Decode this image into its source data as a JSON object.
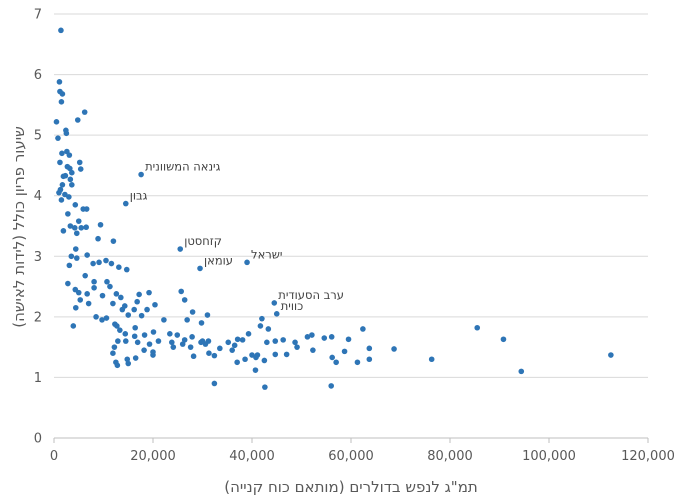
{
  "chart_data": {
    "type": "scatter",
    "title": "",
    "xlabel": "תמ\"ג לנפש בדולרים (מותאם כוח קנייה)",
    "ylabel": "שיעור פריון כולל (לידות לאישה)",
    "xlim": [
      0,
      120000
    ],
    "ylim": [
      0,
      7
    ],
    "x_ticks": [
      0,
      20000,
      40000,
      60000,
      80000,
      100000,
      120000
    ],
    "x_tick_labels": [
      "0",
      "20,000",
      "40,000",
      "60,000",
      "80,000",
      "100,000",
      "120,000"
    ],
    "y_ticks": [
      0,
      1,
      2,
      3,
      4,
      5,
      6,
      7
    ],
    "y_tick_labels": [
      "0",
      "1",
      "2",
      "3",
      "4",
      "5",
      "6",
      "7"
    ],
    "grid": "horizontal",
    "color": "#2e75b6",
    "annotations": [
      {
        "text": "גינאה המשוונית",
        "x": 17600,
        "y": 4.35
      },
      {
        "text": "גבון",
        "x": 14500,
        "y": 3.87
      },
      {
        "text": "קזחסטן",
        "x": 25500,
        "y": 3.12
      },
      {
        "text": "עומאן",
        "x": 29500,
        "y": 2.8
      },
      {
        "text": "ישראל",
        "x": 39000,
        "y": 2.9
      },
      {
        "text": "ערב הסעודית",
        "x": 44500,
        "y": 2.23
      },
      {
        "text": "כווית",
        "x": 45000,
        "y": 2.05
      }
    ],
    "points": [
      [
        1400,
        6.73
      ],
      [
        1100,
        5.88
      ],
      [
        1200,
        5.72
      ],
      [
        1700,
        5.68
      ],
      [
        1500,
        5.55
      ],
      [
        6200,
        5.38
      ],
      [
        4800,
        5.25
      ],
      [
        500,
        5.22
      ],
      [
        2400,
        5.08
      ],
      [
        2500,
        5.03
      ],
      [
        800,
        4.95
      ],
      [
        1600,
        4.7
      ],
      [
        2600,
        4.73
      ],
      [
        3100,
        4.67
      ],
      [
        1200,
        4.55
      ],
      [
        5200,
        4.55
      ],
      [
        2700,
        4.48
      ],
      [
        3200,
        4.45
      ],
      [
        5400,
        4.44
      ],
      [
        3600,
        4.38
      ],
      [
        1900,
        4.32
      ],
      [
        2300,
        4.33
      ],
      [
        3300,
        4.27
      ],
      [
        1700,
        4.18
      ],
      [
        3600,
        4.18
      ],
      [
        1000,
        4.05
      ],
      [
        1300,
        4.1
      ],
      [
        2200,
        4.02
      ],
      [
        3000,
        3.98
      ],
      [
        1500,
        3.93
      ],
      [
        4300,
        3.85
      ],
      [
        5900,
        3.78
      ],
      [
        6600,
        3.78
      ],
      [
        2800,
        3.7
      ],
      [
        5000,
        3.58
      ],
      [
        3300,
        3.5
      ],
      [
        4200,
        3.47
      ],
      [
        5500,
        3.47
      ],
      [
        6500,
        3.48
      ],
      [
        1900,
        3.42
      ],
      [
        4600,
        3.38
      ],
      [
        9400,
        3.52
      ],
      [
        12000,
        3.25
      ],
      [
        8900,
        3.29
      ],
      [
        4400,
        3.12
      ],
      [
        6700,
        3.02
      ],
      [
        3500,
        3.0
      ],
      [
        4600,
        2.97
      ],
      [
        9100,
        2.9
      ],
      [
        10500,
        2.93
      ],
      [
        7900,
        2.88
      ],
      [
        11600,
        2.88
      ],
      [
        3100,
        2.85
      ],
      [
        13100,
        2.82
      ],
      [
        14700,
        2.78
      ],
      [
        6300,
        2.68
      ],
      [
        8100,
        2.58
      ],
      [
        10700,
        2.58
      ],
      [
        2800,
        2.55
      ],
      [
        11300,
        2.5
      ],
      [
        8100,
        2.48
      ],
      [
        4300,
        2.45
      ],
      [
        5000,
        2.4
      ],
      [
        6700,
        2.38
      ],
      [
        9800,
        2.35
      ],
      [
        12600,
        2.38
      ],
      [
        13500,
        2.32
      ],
      [
        17200,
        2.37
      ],
      [
        19200,
        2.4
      ],
      [
        16800,
        2.25
      ],
      [
        5300,
        2.28
      ],
      [
        7000,
        2.22
      ],
      [
        11900,
        2.22
      ],
      [
        14300,
        2.18
      ],
      [
        20400,
        2.2
      ],
      [
        26400,
        2.28
      ],
      [
        25700,
        2.42
      ],
      [
        4400,
        2.15
      ],
      [
        13800,
        2.12
      ],
      [
        16200,
        2.12
      ],
      [
        18800,
        2.12
      ],
      [
        28000,
        2.08
      ],
      [
        31000,
        2.03
      ],
      [
        8500,
        2.0
      ],
      [
        10600,
        1.98
      ],
      [
        15000,
        2.03
      ],
      [
        17700,
        2.02
      ],
      [
        22200,
        1.95
      ],
      [
        26900,
        1.95
      ],
      [
        29800,
        1.9
      ],
      [
        9700,
        1.95
      ],
      [
        12300,
        1.88
      ],
      [
        12700,
        1.85
      ],
      [
        16400,
        1.82
      ],
      [
        20100,
        1.75
      ],
      [
        23400,
        1.72
      ],
      [
        24900,
        1.7
      ],
      [
        27900,
        1.67
      ],
      [
        3900,
        1.85
      ],
      [
        13300,
        1.78
      ],
      [
        14400,
        1.72
      ],
      [
        16300,
        1.68
      ],
      [
        18300,
        1.7
      ],
      [
        21100,
        1.6
      ],
      [
        26400,
        1.62
      ],
      [
        29700,
        1.58
      ],
      [
        31200,
        1.6
      ],
      [
        35200,
        1.58
      ],
      [
        37100,
        1.63
      ],
      [
        38100,
        1.62
      ],
      [
        39300,
        1.72
      ],
      [
        41700,
        1.85
      ],
      [
        42000,
        1.97
      ],
      [
        43300,
        1.8
      ],
      [
        12900,
        1.6
      ],
      [
        14500,
        1.6
      ],
      [
        16900,
        1.58
      ],
      [
        19300,
        1.55
      ],
      [
        23800,
        1.58
      ],
      [
        26000,
        1.55
      ],
      [
        30600,
        1.55
      ],
      [
        36500,
        1.53
      ],
      [
        43000,
        1.58
      ],
      [
        44700,
        1.6
      ],
      [
        46300,
        1.62
      ],
      [
        48700,
        1.58
      ],
      [
        51200,
        1.67
      ],
      [
        52100,
        1.7
      ],
      [
        54600,
        1.65
      ],
      [
        56100,
        1.67
      ],
      [
        59500,
        1.63
      ],
      [
        62400,
        1.8
      ],
      [
        12200,
        1.5
      ],
      [
        18200,
        1.45
      ],
      [
        20000,
        1.42
      ],
      [
        24100,
        1.5
      ],
      [
        27600,
        1.5
      ],
      [
        31300,
        1.4
      ],
      [
        33500,
        1.48
      ],
      [
        36000,
        1.45
      ],
      [
        40000,
        1.37
      ],
      [
        41100,
        1.37
      ],
      [
        47000,
        1.38
      ],
      [
        49100,
        1.5
      ],
      [
        52300,
        1.45
      ],
      [
        58700,
        1.43
      ],
      [
        63700,
        1.48
      ],
      [
        68700,
        1.47
      ],
      [
        11900,
        1.4
      ],
      [
        14800,
        1.3
      ],
      [
        16500,
        1.32
      ],
      [
        20000,
        1.37
      ],
      [
        28200,
        1.35
      ],
      [
        32400,
        1.36
      ],
      [
        38600,
        1.3
      ],
      [
        40800,
        1.33
      ],
      [
        44700,
        1.38
      ],
      [
        56200,
        1.33
      ],
      [
        61300,
        1.25
      ],
      [
        63700,
        1.3
      ],
      [
        12500,
        1.25
      ],
      [
        12800,
        1.2
      ],
      [
        15000,
        1.23
      ],
      [
        37000,
        1.25
      ],
      [
        40700,
        1.12
      ],
      [
        42500,
        1.28
      ],
      [
        57000,
        1.25
      ],
      [
        32400,
        0.9
      ],
      [
        42600,
        0.84
      ],
      [
        56000,
        0.86
      ],
      [
        76300,
        1.3
      ],
      [
        85500,
        1.82
      ],
      [
        90800,
        1.63
      ],
      [
        94400,
        1.1
      ],
      [
        112500,
        1.37
      ],
      [
        30000,
        1.6
      ]
    ]
  }
}
